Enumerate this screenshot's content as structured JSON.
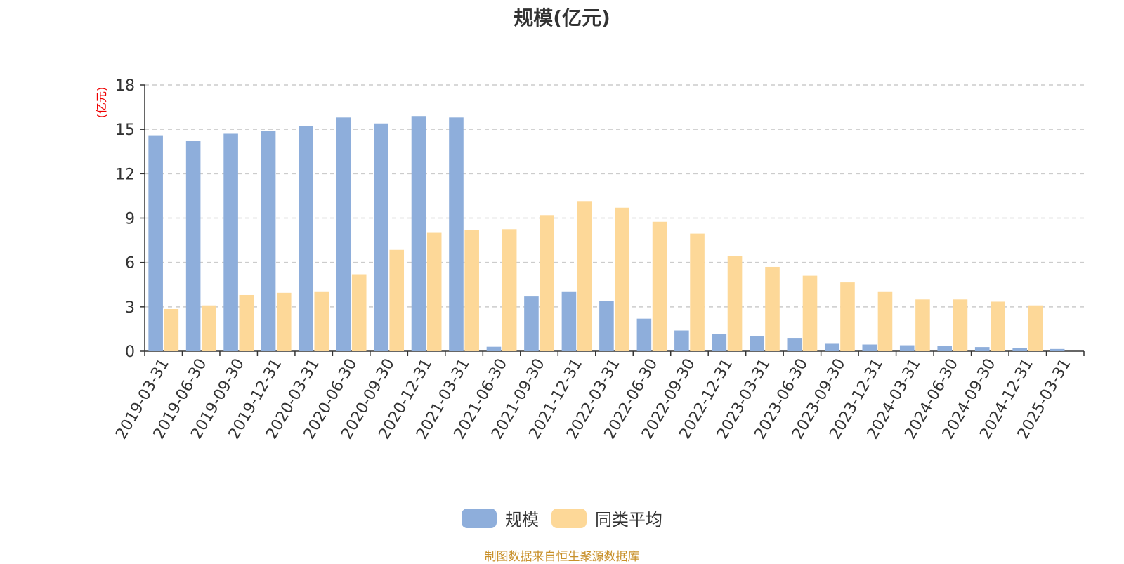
{
  "chart_data": {
    "type": "bar",
    "title": "规模(亿元)",
    "ylabel": "(亿元)",
    "ylim": [
      0,
      18
    ],
    "yticks": [
      0,
      3,
      6,
      9,
      12,
      15,
      18
    ],
    "grid": true,
    "legend_position": "bottom",
    "categories": [
      "2019-03-31",
      "2019-06-30",
      "2019-09-30",
      "2019-12-31",
      "2020-03-31",
      "2020-06-30",
      "2020-09-30",
      "2020-12-31",
      "2021-03-31",
      "2021-06-30",
      "2021-09-30",
      "2021-12-31",
      "2022-03-31",
      "2022-06-30",
      "2022-09-30",
      "2022-12-31",
      "2023-03-31",
      "2023-06-30",
      "2023-09-30",
      "2023-12-31",
      "2024-03-31",
      "2024-06-30",
      "2024-09-30",
      "2024-12-31",
      "2025-03-31"
    ],
    "series": [
      {
        "name": "规模",
        "color": "#8eaedb",
        "values": [
          14.6,
          14.2,
          14.7,
          14.9,
          15.2,
          15.8,
          15.4,
          15.9,
          15.8,
          0.3,
          3.7,
          4.0,
          3.4,
          2.2,
          1.4,
          1.15,
          1.0,
          0.9,
          0.5,
          0.45,
          0.4,
          0.35,
          0.28,
          0.2,
          0.15
        ]
      },
      {
        "name": "同类平均",
        "color": "#fdd898",
        "values": [
          2.85,
          3.1,
          3.8,
          3.95,
          4.0,
          5.2,
          6.85,
          8.0,
          8.2,
          8.25,
          9.2,
          10.15,
          9.7,
          8.75,
          7.95,
          6.45,
          5.7,
          5.1,
          4.65,
          4.0,
          3.5,
          3.5,
          3.35,
          3.1,
          0
        ]
      }
    ]
  },
  "footer": {
    "source": "制图数据来自恒生聚源数据库"
  }
}
